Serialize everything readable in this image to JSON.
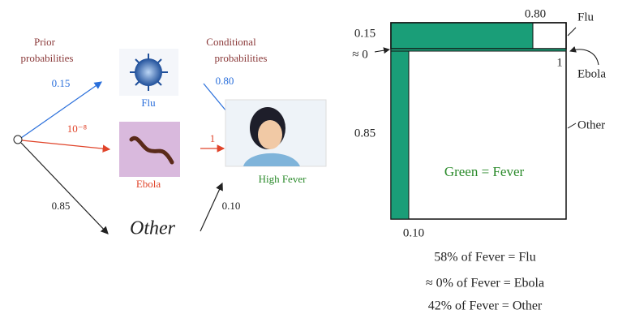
{
  "left": {
    "prior_label": [
      "Prior",
      "probabilities"
    ],
    "conditional_label": [
      "Conditional",
      "probabilities"
    ],
    "priors": {
      "flu": "0.15",
      "ebola": "10⁻⁸",
      "other": "0.85"
    },
    "nodes": {
      "flu": "Flu",
      "ebola": "Ebola",
      "other": "Other",
      "fever": "High Fever"
    },
    "conditionals": {
      "flu": "0.80",
      "ebola": "1",
      "other": "0.10"
    }
  },
  "right": {
    "flu_conditional": "0.80",
    "flu": "Flu",
    "flu_prior": "0.15",
    "ebola_prior": "≈ 0",
    "ebola_conditional": "1",
    "ebola": "Ebola",
    "other": "Other",
    "other_prior": "0.85",
    "legend": "Green = Fever",
    "other_conditional": "0.10"
  },
  "results": [
    "58% of Fever = Flu",
    "≈ 0% of Fever = Ebola",
    "42% of Fever = Other"
  ]
}
